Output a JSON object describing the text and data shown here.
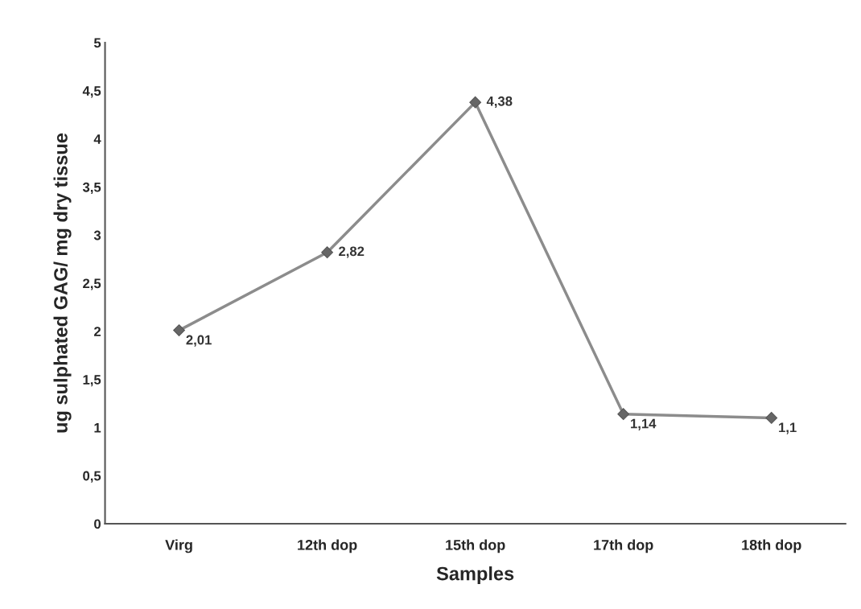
{
  "chart_data": {
    "type": "line",
    "xlabel": "Samples",
    "ylabel": "ug sulphated GAG/ mg dry tissue",
    "categories": [
      "Virg",
      "12th dop",
      "15th dop",
      "17th dop",
      "18th dop"
    ],
    "series": [
      {
        "color": "#8c8c8c",
        "values": [
          2.01,
          2.82,
          4.38,
          1.14,
          1.1
        ],
        "value_labels": [
          "2,01",
          "2,82",
          "4,38",
          "1,14",
          "1,1"
        ]
      }
    ],
    "ylim": [
      0,
      5
    ],
    "yticks": [
      0,
      {
        "value": 0.5,
        "label": "0,5"
      },
      1,
      {
        "value": 1.5,
        "label": "1,5"
      },
      2,
      {
        "value": 2.5,
        "label": "2,5"
      },
      3,
      {
        "value": 3.5,
        "label": "3,5"
      },
      4,
      {
        "value": 4.5,
        "label": "4,5"
      },
      5
    ],
    "marker": "diamond",
    "line_style": "solid",
    "grid": false,
    "legend": false
  }
}
